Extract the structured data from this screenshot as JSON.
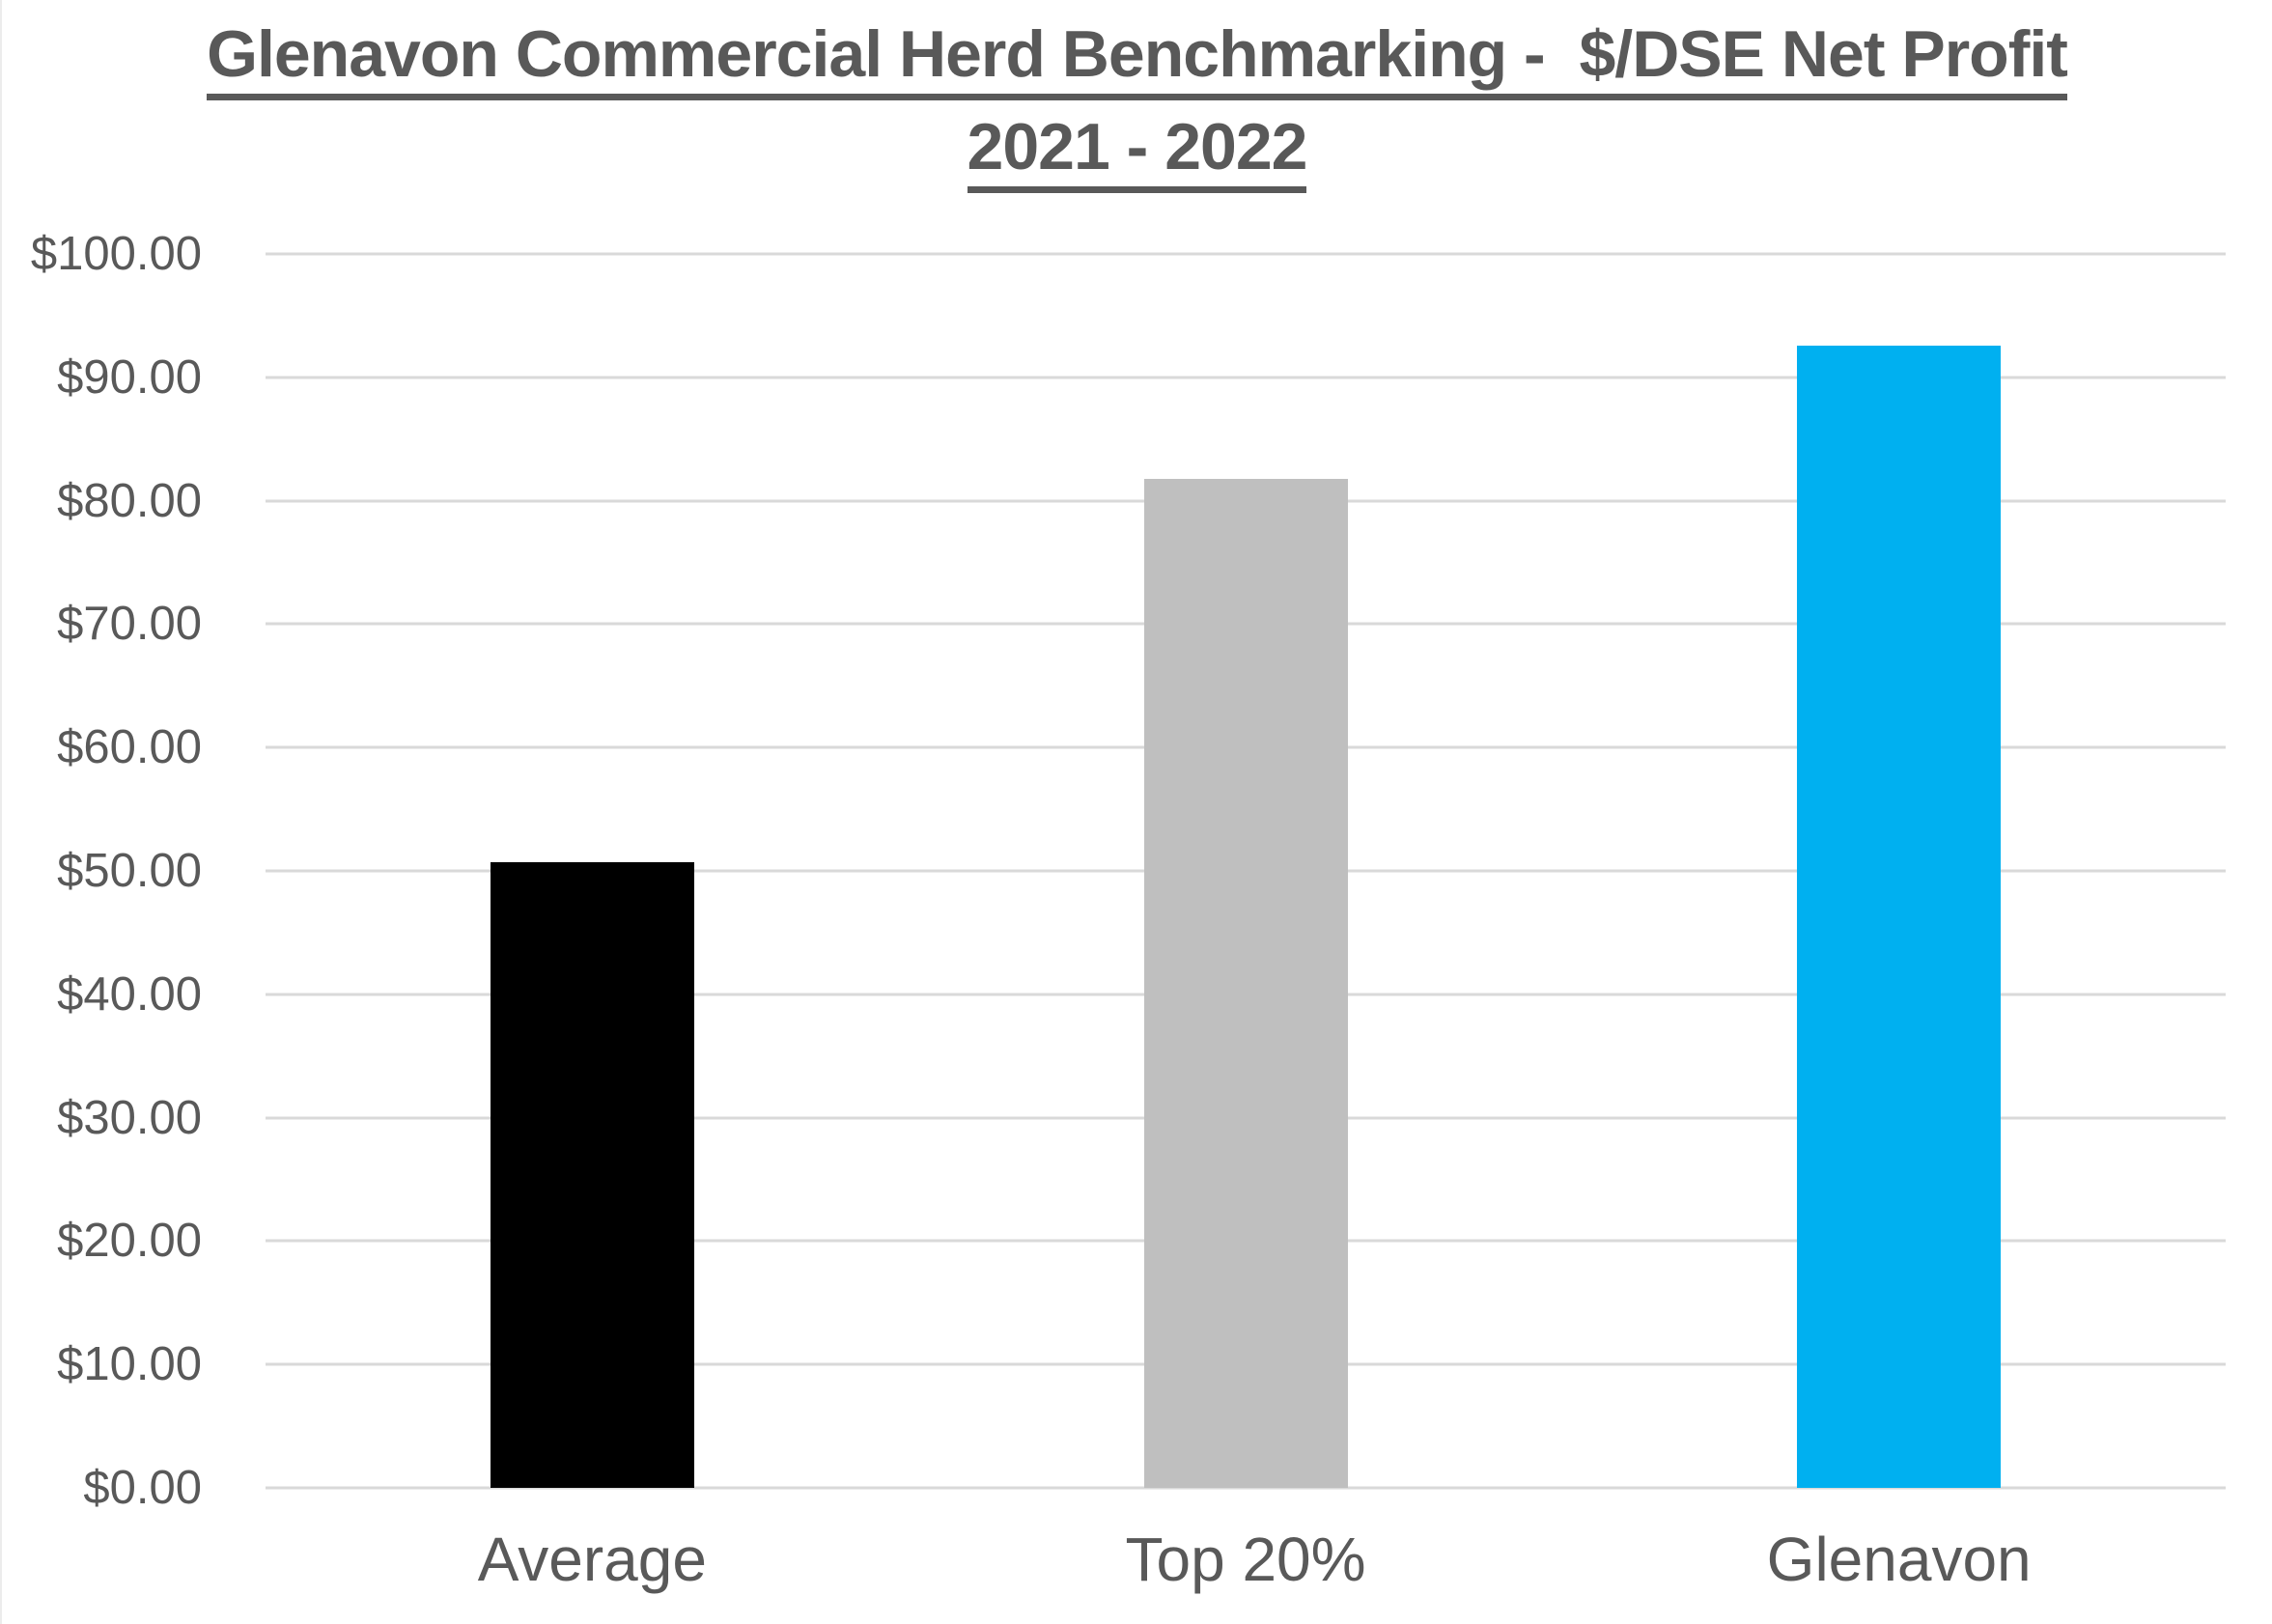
{
  "title": {
    "line1": "Glenavon Commercial Herd Benchmarking -  $/DSE Net Profit",
    "line2": "2021 - 2022"
  },
  "chart_data": {
    "type": "bar",
    "title": "Glenavon Commercial Herd Benchmarking - $/DSE Net Profit 2021 - 2022",
    "categories": [
      "Average",
      "Top 20%",
      "Glenavon"
    ],
    "values": [
      50.7,
      81.8,
      92.6
    ],
    "bar_colors": [
      "#000000",
      "#BFBFBF",
      "#00B0F0"
    ],
    "xlabel": "",
    "ylabel": "",
    "ylim": [
      0,
      100
    ],
    "ytick_step": 10,
    "ytick_labels": [
      "$0.00",
      "$10.00",
      "$20.00",
      "$30.00",
      "$40.00",
      "$50.00",
      "$60.00",
      "$70.00",
      "$80.00",
      "$90.00",
      "$100.00"
    ],
    "grid": true,
    "gridline_color": "#D9D9D9",
    "legend": false,
    "text_color": "#595959",
    "background_color": "#FFFFFF"
  }
}
